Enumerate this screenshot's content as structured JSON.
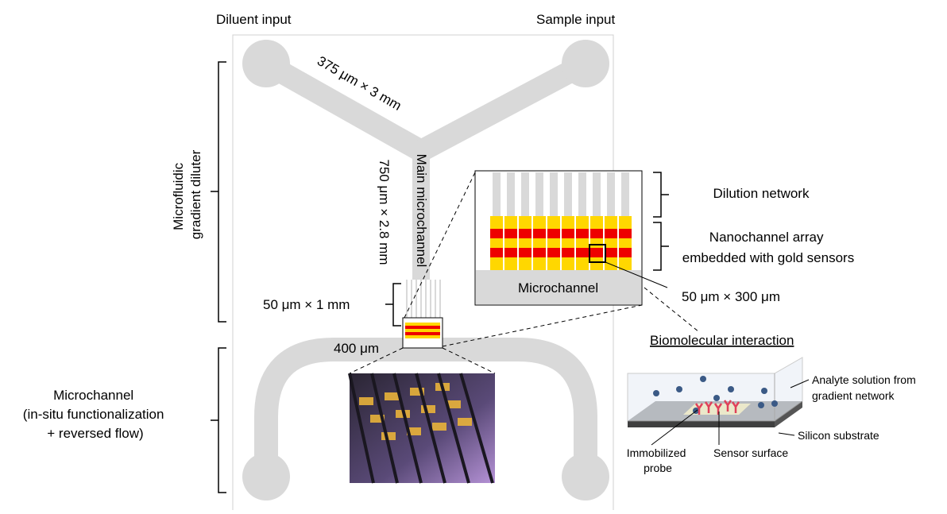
{
  "labels": {
    "diluent_input": "Diluent input",
    "sample_input": "Sample input",
    "branch_size": "375 μm × 3 mm",
    "gradient_diluter": [
      "Microfluidic",
      "gradient diluter"
    ],
    "main_size": "750 μm × 2.8 mm",
    "main_channel": "Main microchannel",
    "dilution_network": "Dilution network",
    "nanochannel_array": [
      "Nanochannel array",
      "embedded with gold sensors"
    ],
    "inset_microchannel": "Microchannel",
    "sensor_size": "50 μm × 300 μm",
    "network_size": "50 μm × 1 mm",
    "width_400": "400 μm",
    "biomolecular": "Biomolecular interaction",
    "bottom_channel": [
      "Microchannel",
      "(in-situ functionalization",
      "+ reversed flow)"
    ],
    "analyte": [
      "Analyte solution from",
      "gradient network"
    ],
    "substrate": "Silicon substrate",
    "probe": [
      "Immobilized",
      "probe"
    ],
    "sensor_surface": "Sensor surface"
  }
}
